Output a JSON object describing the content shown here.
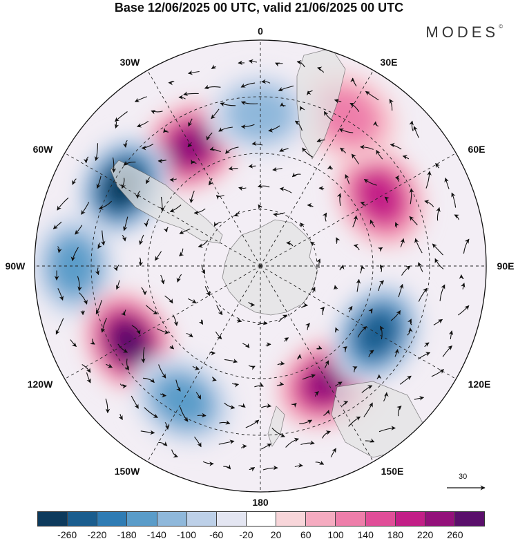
{
  "header": {
    "title": "Base 12/06/2025 00 UTC, valid 21/06/2025 00 UTC",
    "brand": "MODES",
    "brand_mark": "©"
  },
  "map": {
    "projection": "south-polar-stereographic",
    "longitude_labels": [
      "0",
      "30E",
      "60E",
      "90E",
      "120E",
      "150E",
      "180",
      "150W",
      "120W",
      "90W",
      "60W",
      "30W"
    ],
    "anomaly_centres": [
      {
        "lon_label": "30W",
        "value": 240
      },
      {
        "lon_label": "60W",
        "value": -260
      },
      {
        "lon_label": "90W",
        "value": -140
      },
      {
        "lon_label": "120W",
        "value": 260
      },
      {
        "lon_label": "150W",
        "value": -140
      },
      {
        "lon_label": "150E",
        "value": 220
      },
      {
        "lon_label": "120E",
        "value": -220
      },
      {
        "lon_label": "60E",
        "value": 180
      },
      {
        "lon_label": "30E",
        "value": 120
      },
      {
        "lon_label": "0",
        "value": -100
      }
    ]
  },
  "wind_scale": {
    "value": "30"
  },
  "colorbar": {
    "labels": [
      "-260",
      "-220",
      "-180",
      "-140",
      "-100",
      "-60",
      "-20",
      "20",
      "60",
      "100",
      "140",
      "180",
      "220",
      "260"
    ],
    "colors": [
      "#0d3a5c",
      "#1a5d8e",
      "#2f7cb4",
      "#5a9cc9",
      "#8fb8db",
      "#bdd0e8",
      "#e4e6f2",
      "#ffffff",
      "#f8d6da",
      "#f5abc0",
      "#ee7eaa",
      "#e04e98",
      "#c21f87",
      "#93117a",
      "#5a0f6b"
    ]
  }
}
